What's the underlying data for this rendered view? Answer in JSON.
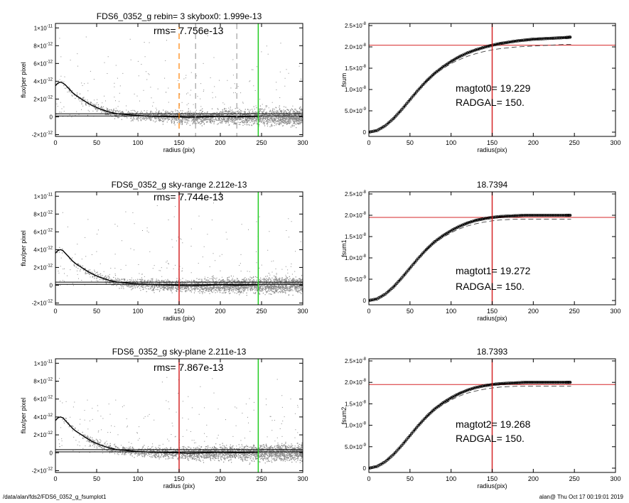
{
  "figure": {
    "footer_left": "/data/alan/fds2/FDS6_0352_g_fsumplot1",
    "footer_right": "alan@  Thu Oct 17 00:19:01 2019"
  },
  "colors": {
    "background": "#ffffff",
    "profile_line": "#000000",
    "scatter_points": "#8a8a8a",
    "red_marker": "#d62728",
    "green_marker": "#22cc22",
    "orange_marker": "#ff8000",
    "gray_dashed_marker": "#a0a0a0"
  },
  "chart_data": [
    {
      "type": "scatter",
      "title": "FDS6_0352_g rebin= 3    skybox0:  1.999e-13",
      "annotations": [
        "rms= 7.756e-13"
      ],
      "xlabel": "radius (pix)",
      "ylabel": "flux/per pixel",
      "xlim": [
        0,
        300
      ],
      "ylim": [
        -2.2e-12,
        1.05e-11
      ],
      "xticks": [
        0,
        50,
        100,
        150,
        200,
        250,
        300
      ],
      "yticks": [
        {
          "value": -2e-12,
          "label": "-2×10",
          "exp": "-12"
        },
        {
          "value": 0,
          "label": "0",
          "exp": ""
        },
        {
          "value": 2e-12,
          "label": "2×10",
          "exp": "-12"
        },
        {
          "value": 4e-12,
          "label": "4×10",
          "exp": "-12"
        },
        {
          "value": 6e-12,
          "label": "6×10",
          "exp": "-12"
        },
        {
          "value": 8e-12,
          "label": "8×10",
          "exp": "-12"
        },
        {
          "value": 1e-11,
          "label": "1×10",
          "exp": "-11"
        }
      ],
      "series": [
        {
          "role": "mean_profile",
          "x": [
            0,
            3,
            6,
            9,
            12,
            15,
            18,
            21,
            25,
            30,
            35,
            40,
            45,
            50,
            55,
            60,
            65,
            70,
            75,
            80,
            90,
            100,
            110,
            120,
            130,
            140,
            150,
            160,
            180,
            200,
            220,
            246
          ],
          "y": [
            3.5e-12,
            3.8e-12,
            3.9e-12,
            3.8e-12,
            3.6e-12,
            3.3e-12,
            3e-12,
            2.7e-12,
            2.4e-12,
            2.1e-12,
            1.8e-12,
            1.5e-12,
            1.25e-12,
            1.05e-12,
            8.5e-13,
            7e-13,
            5.5e-13,
            4.5e-13,
            3.5e-13,
            3e-13,
            2.2e-13,
            1.5e-13,
            9e-14,
            5e-14,
            3e-14,
            1e-14,
            0,
            -5e-14,
            0,
            5e-14,
            0,
            5e-14
          ]
        }
      ],
      "hlines": [
        3.5e-13,
        1e-13
      ],
      "vlines": [
        {
          "x": 150,
          "color": "orange",
          "style": "dashed"
        },
        {
          "x": 170,
          "color": "gray",
          "style": "dashed"
        },
        {
          "x": 220,
          "color": "gray",
          "style": "dashed"
        },
        {
          "x": 246,
          "color": "green",
          "style": "solid"
        }
      ],
      "scatter": {
        "xmax": 300,
        "baseline_spread": 6e-13,
        "outlier_max": 1e-11
      }
    },
    {
      "type": "line",
      "title": "",
      "annotations": [
        "magtot0=  19.229",
        "RADGAL=    150."
      ],
      "xlabel": "radius(pix)",
      "ylabel": "fsum",
      "xlim": [
        0,
        300
      ],
      "ylim": [
        -1e-09,
        2.55e-08
      ],
      "xticks": [
        0,
        50,
        100,
        150,
        200,
        250,
        300
      ],
      "yticks": [
        {
          "value": 0,
          "label": "0",
          "exp": ""
        },
        {
          "value": 5e-09,
          "label": "5.0×10",
          "exp": "-9"
        },
        {
          "value": 1e-08,
          "label": "1.0×10",
          "exp": "-8"
        },
        {
          "value": 1.5e-08,
          "label": "1.5×10",
          "exp": "-8"
        },
        {
          "value": 2e-08,
          "label": "2.0×10",
          "exp": "-8"
        },
        {
          "value": 2.5e-08,
          "label": "2.5×10",
          "exp": "-8"
        }
      ],
      "series": [
        {
          "role": "cumulative_flux",
          "x": [
            0,
            10,
            20,
            30,
            40,
            50,
            60,
            70,
            80,
            90,
            100,
            110,
            120,
            130,
            140,
            150,
            160,
            170,
            180,
            190,
            200,
            210,
            220,
            230,
            240,
            246
          ],
          "y": [
            0,
            4e-10,
            1.5e-09,
            3.2e-09,
            5.3e-09,
            7.6e-09,
            9.9e-09,
            1.2e-08,
            1.38e-08,
            1.53e-08,
            1.66e-08,
            1.77e-08,
            1.86e-08,
            1.93e-08,
            1.99e-08,
            2.04e-08,
            2.08e-08,
            2.11e-08,
            2.14e-08,
            2.16e-08,
            2.18e-08,
            2.19e-08,
            2.2e-08,
            2.21e-08,
            2.22e-08,
            2.23e-08
          ]
        },
        {
          "role": "comparison_dashed",
          "x": [
            0,
            10,
            20,
            30,
            40,
            50,
            60,
            70,
            80,
            90,
            100,
            110,
            120,
            130,
            140,
            150,
            160,
            170,
            180,
            190,
            200,
            210,
            220,
            230,
            240,
            246
          ],
          "y": [
            0,
            4e-10,
            1.5e-09,
            3.2e-09,
            5.3e-09,
            7.6e-09,
            9.8e-09,
            1.18e-08,
            1.35e-08,
            1.49e-08,
            1.61e-08,
            1.7e-08,
            1.78e-08,
            1.84e-08,
            1.89e-08,
            1.93e-08,
            1.96e-08,
            1.98e-08,
            2e-08,
            2.01e-08,
            2.02e-08,
            2.03e-08,
            2.04e-08,
            2.05e-08,
            2.06e-08,
            2.06e-08
          ]
        }
      ],
      "hlines": [
        2.04e-08
      ],
      "vlines": [
        {
          "x": 150,
          "color": "red",
          "style": "solid"
        }
      ]
    },
    {
      "type": "scatter",
      "title": "FDS6_0352_g sky-range  2.212e-13",
      "annotations": [
        "rms= 7.744e-13"
      ],
      "xlabel": "radius (pix)",
      "ylabel": "flux/per pixel",
      "xlim": [
        0,
        300
      ],
      "ylim": [
        -2.2e-12,
        1.05e-11
      ],
      "xticks": [
        0,
        50,
        100,
        150,
        200,
        250,
        300
      ],
      "yticks": [
        {
          "value": -2e-12,
          "label": "-2×10",
          "exp": "-12"
        },
        {
          "value": 0,
          "label": "0",
          "exp": ""
        },
        {
          "value": 2e-12,
          "label": "2×10",
          "exp": "-12"
        },
        {
          "value": 4e-12,
          "label": "4×10",
          "exp": "-12"
        },
        {
          "value": 6e-12,
          "label": "6×10",
          "exp": "-12"
        },
        {
          "value": 8e-12,
          "label": "8×10",
          "exp": "-12"
        },
        {
          "value": 1e-11,
          "label": "1×10",
          "exp": "-11"
        }
      ],
      "series": [
        {
          "role": "mean_profile",
          "x": [
            0,
            3,
            6,
            9,
            12,
            15,
            18,
            21,
            25,
            30,
            35,
            40,
            45,
            50,
            55,
            60,
            65,
            70,
            75,
            80,
            90,
            100,
            110,
            120,
            130,
            140,
            150,
            160,
            180,
            200,
            220,
            246
          ],
          "y": [
            3.6e-12,
            3.9e-12,
            4e-12,
            3.9e-12,
            3.6e-12,
            3.3e-12,
            3e-12,
            2.7e-12,
            2.4e-12,
            2.1e-12,
            1.8e-12,
            1.5e-12,
            1.25e-12,
            1.05e-12,
            8.5e-13,
            7e-13,
            5.5e-13,
            4.5e-13,
            3.5e-13,
            3e-13,
            2.2e-13,
            1.5e-13,
            9e-14,
            5e-14,
            3e-14,
            1e-14,
            0,
            -5e-14,
            0,
            5e-14,
            0,
            5e-14
          ]
        }
      ],
      "hlines": [
        3.5e-13,
        1e-13
      ],
      "vlines": [
        {
          "x": 150,
          "color": "red",
          "style": "solid"
        },
        {
          "x": 246,
          "color": "green",
          "style": "solid"
        }
      ],
      "scatter": {
        "xmax": 300,
        "baseline_spread": 6e-13,
        "outlier_max": 1e-11
      }
    },
    {
      "type": "line",
      "title": "18.7394",
      "annotations": [
        "magtot1=  19.272",
        "RADGAL=    150."
      ],
      "xlabel": "radius(pix)",
      "ylabel": "fsum1",
      "xlim": [
        0,
        300
      ],
      "ylim": [
        -1e-09,
        2.55e-08
      ],
      "xticks": [
        0,
        50,
        100,
        150,
        200,
        250,
        300
      ],
      "yticks": [
        {
          "value": 0,
          "label": "0",
          "exp": ""
        },
        {
          "value": 5e-09,
          "label": "5.0×10",
          "exp": "-9"
        },
        {
          "value": 1e-08,
          "label": "1.0×10",
          "exp": "-8"
        },
        {
          "value": 1.5e-08,
          "label": "1.5×10",
          "exp": "-8"
        },
        {
          "value": 2e-08,
          "label": "2.0×10",
          "exp": "-8"
        },
        {
          "value": 2.5e-08,
          "label": "2.5×10",
          "exp": "-8"
        }
      ],
      "series": [
        {
          "role": "cumulative_flux",
          "x": [
            0,
            10,
            20,
            30,
            40,
            50,
            60,
            70,
            80,
            90,
            100,
            110,
            120,
            130,
            140,
            150,
            160,
            170,
            180,
            190,
            200,
            210,
            220,
            230,
            240,
            246
          ],
          "y": [
            0,
            4e-10,
            1.5e-09,
            3.2e-09,
            5.3e-09,
            7.6e-09,
            9.9e-09,
            1.2e-08,
            1.38e-08,
            1.52e-08,
            1.64e-08,
            1.74e-08,
            1.82e-08,
            1.88e-08,
            1.92e-08,
            1.95e-08,
            1.97e-08,
            1.98e-08,
            1.99e-08,
            2e-08,
            2e-08,
            2e-08,
            2e-08,
            2e-08,
            2e-08,
            2e-08
          ]
        },
        {
          "role": "comparison_dashed",
          "x": [
            0,
            10,
            20,
            30,
            40,
            50,
            60,
            70,
            80,
            90,
            100,
            110,
            120,
            130,
            140,
            150,
            160,
            170,
            180,
            190,
            200,
            210,
            220,
            230,
            240,
            246
          ],
          "y": [
            0,
            4e-10,
            1.5e-09,
            3.2e-09,
            5.3e-09,
            7.6e-09,
            9.8e-09,
            1.18e-08,
            1.34e-08,
            1.48e-08,
            1.59e-08,
            1.68e-08,
            1.75e-08,
            1.8e-08,
            1.84e-08,
            1.87e-08,
            1.89e-08,
            1.9e-08,
            1.91e-08,
            1.91e-08,
            1.91e-08,
            1.91e-08,
            1.91e-08,
            1.91e-08,
            1.91e-08,
            1.91e-08
          ]
        }
      ],
      "hlines": [
        1.95e-08
      ],
      "vlines": [
        {
          "x": 150,
          "color": "red",
          "style": "solid"
        }
      ]
    },
    {
      "type": "scatter",
      "title": "FDS6_0352_g sky-plane  2.211e-13",
      "annotations": [
        "rms= 7.867e-13"
      ],
      "xlabel": "radius (pix)",
      "ylabel": "flux/per pixel",
      "xlim": [
        0,
        300
      ],
      "ylim": [
        -2.2e-12,
        1.05e-11
      ],
      "xticks": [
        0,
        50,
        100,
        150,
        200,
        250,
        300
      ],
      "yticks": [
        {
          "value": -2e-12,
          "label": "-2×10",
          "exp": "-12"
        },
        {
          "value": 0,
          "label": "0",
          "exp": ""
        },
        {
          "value": 2e-12,
          "label": "2×10",
          "exp": "-12"
        },
        {
          "value": 4e-12,
          "label": "4×10",
          "exp": "-12"
        },
        {
          "value": 6e-12,
          "label": "6×10",
          "exp": "-12"
        },
        {
          "value": 8e-12,
          "label": "8×10",
          "exp": "-12"
        },
        {
          "value": 1e-11,
          "label": "1×10",
          "exp": "-11"
        }
      ],
      "series": [
        {
          "role": "mean_profile",
          "x": [
            0,
            3,
            6,
            9,
            12,
            15,
            18,
            21,
            25,
            30,
            35,
            40,
            45,
            50,
            55,
            60,
            65,
            70,
            75,
            80,
            90,
            100,
            110,
            120,
            130,
            140,
            150,
            160,
            180,
            200,
            220,
            246
          ],
          "y": [
            3.6e-12,
            3.9e-12,
            4e-12,
            3.9e-12,
            3.6e-12,
            3.3e-12,
            3e-12,
            2.7e-12,
            2.4e-12,
            2.1e-12,
            1.8e-12,
            1.5e-12,
            1.25e-12,
            1.05e-12,
            8.5e-13,
            7e-13,
            5.5e-13,
            4.5e-13,
            3.5e-13,
            3e-13,
            2.2e-13,
            1.5e-13,
            9e-14,
            5e-14,
            3e-14,
            1e-14,
            0,
            -5e-14,
            0,
            5e-14,
            0,
            5e-14
          ]
        }
      ],
      "hlines": [
        3.5e-13,
        1e-13
      ],
      "vlines": [
        {
          "x": 150,
          "color": "red",
          "style": "solid"
        },
        {
          "x": 246,
          "color": "green",
          "style": "solid"
        }
      ],
      "scatter": {
        "xmax": 300,
        "baseline_spread": 6e-13,
        "outlier_max": 1e-11
      }
    },
    {
      "type": "line",
      "title": "18.7393",
      "annotations": [
        "magtot2=  19.268",
        "RADGAL=    150."
      ],
      "xlabel": "radius(pix)",
      "ylabel": "fsum2",
      "xlim": [
        0,
        300
      ],
      "ylim": [
        -1e-09,
        2.55e-08
      ],
      "xticks": [
        0,
        50,
        100,
        150,
        200,
        250,
        300
      ],
      "yticks": [
        {
          "value": 0,
          "label": "0",
          "exp": ""
        },
        {
          "value": 5e-09,
          "label": "5.0×10",
          "exp": "-9"
        },
        {
          "value": 1e-08,
          "label": "1.0×10",
          "exp": "-8"
        },
        {
          "value": 1.5e-08,
          "label": "1.5×10",
          "exp": "-8"
        },
        {
          "value": 2e-08,
          "label": "2.0×10",
          "exp": "-8"
        },
        {
          "value": 2.5e-08,
          "label": "2.5×10",
          "exp": "-8"
        }
      ],
      "series": [
        {
          "role": "cumulative_flux",
          "x": [
            0,
            10,
            20,
            30,
            40,
            50,
            60,
            70,
            80,
            90,
            100,
            110,
            120,
            130,
            140,
            150,
            160,
            170,
            180,
            190,
            200,
            210,
            220,
            230,
            240,
            246
          ],
          "y": [
            0,
            4e-10,
            1.5e-09,
            3.2e-09,
            5.3e-09,
            7.6e-09,
            9.9e-09,
            1.2e-08,
            1.38e-08,
            1.52e-08,
            1.64e-08,
            1.74e-08,
            1.82e-08,
            1.88e-08,
            1.92e-08,
            1.95e-08,
            1.97e-08,
            1.98e-08,
            1.99e-08,
            2e-08,
            2e-08,
            2e-08,
            2e-08,
            2e-08,
            2e-08,
            2e-08
          ]
        },
        {
          "role": "comparison_dashed",
          "x": [
            0,
            10,
            20,
            30,
            40,
            50,
            60,
            70,
            80,
            90,
            100,
            110,
            120,
            130,
            140,
            150,
            160,
            170,
            180,
            190,
            200,
            210,
            220,
            230,
            240,
            246
          ],
          "y": [
            0,
            4e-10,
            1.5e-09,
            3.2e-09,
            5.3e-09,
            7.6e-09,
            9.8e-09,
            1.18e-08,
            1.34e-08,
            1.48e-08,
            1.59e-08,
            1.68e-08,
            1.75e-08,
            1.8e-08,
            1.84e-08,
            1.87e-08,
            1.89e-08,
            1.9e-08,
            1.91e-08,
            1.91e-08,
            1.91e-08,
            1.91e-08,
            1.91e-08,
            1.91e-08,
            1.91e-08,
            1.91e-08
          ]
        }
      ],
      "hlines": [
        1.95e-08
      ],
      "vlines": [
        {
          "x": 150,
          "color": "red",
          "style": "solid"
        }
      ]
    }
  ]
}
